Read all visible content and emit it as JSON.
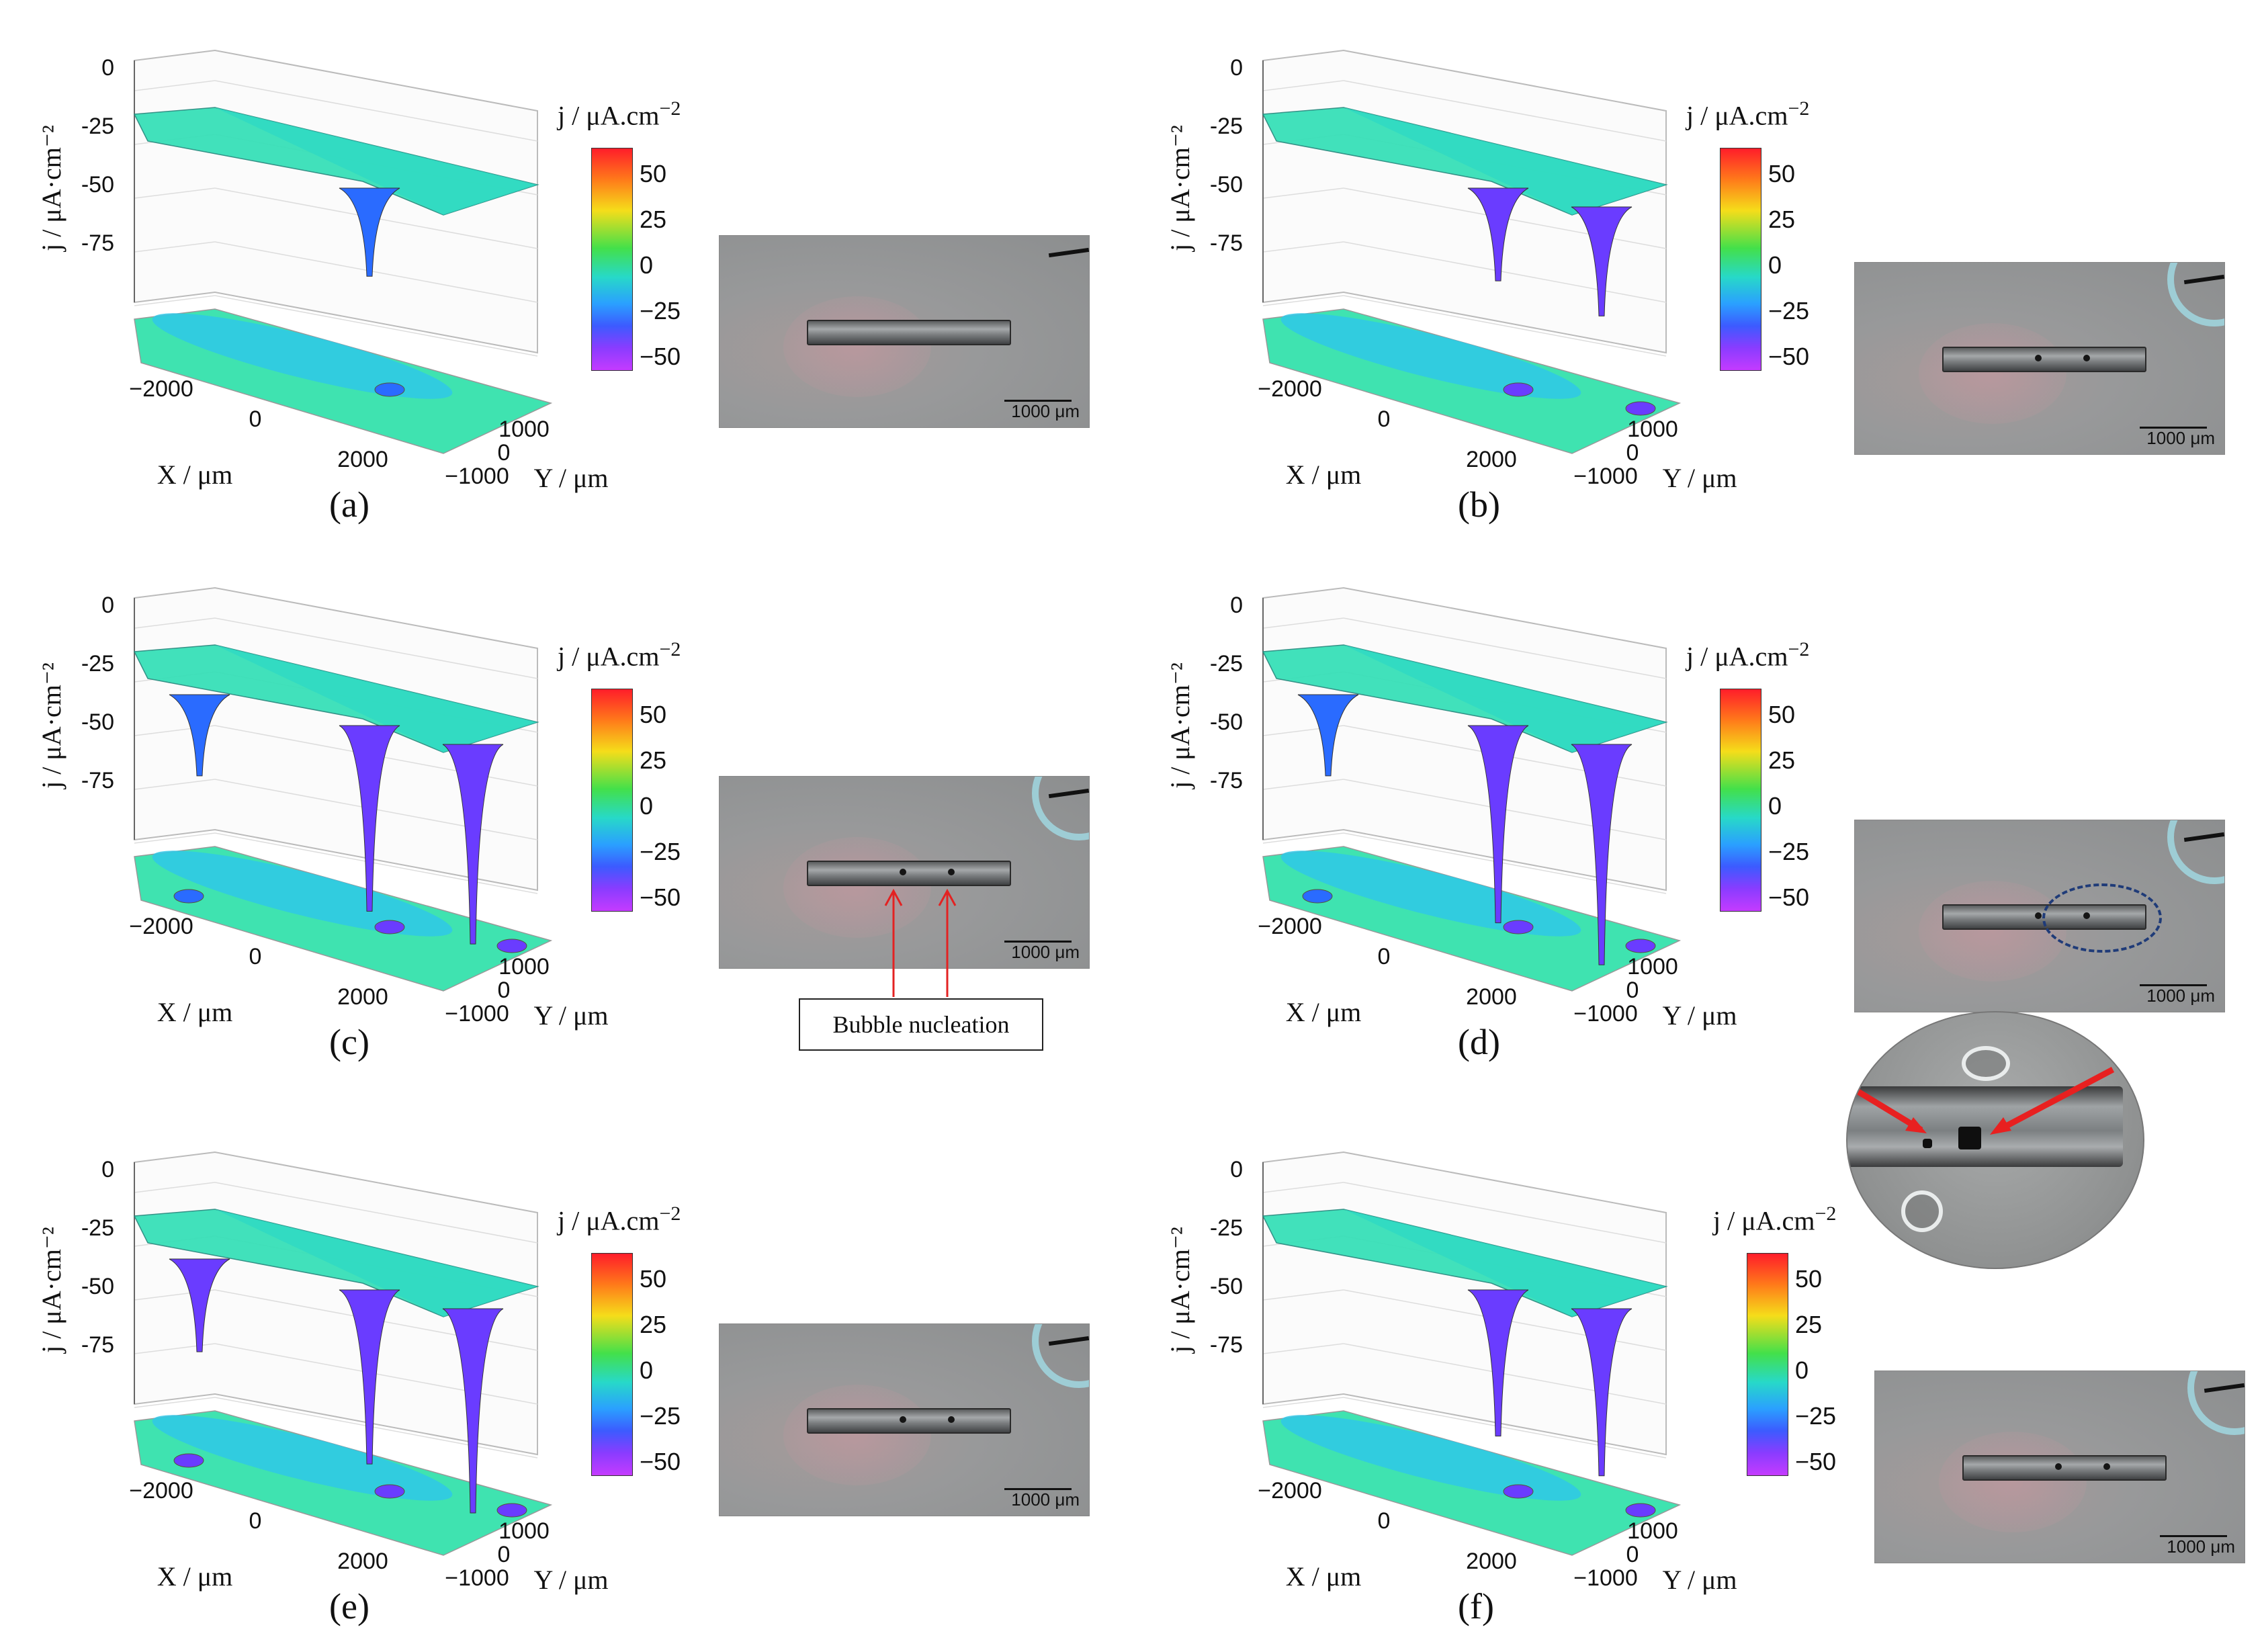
{
  "colorbar": {
    "title": "j / μA.cm",
    "title_exp": "−2",
    "ticks": [
      "50",
      "25",
      "0",
      "−25",
      "−50"
    ]
  },
  "axes": {
    "z_label": "j / μA·cm⁻²",
    "z_ticks": [
      "0",
      "-25",
      "-50",
      "-75"
    ],
    "x_label": "X / μm",
    "x_ticks": [
      "−2000",
      "0",
      "2000"
    ],
    "y_label": "Y / μm",
    "y_ticks": [
      "1000",
      "0",
      "−1000"
    ]
  },
  "scale_bar_text": "1000 μm",
  "annotation": "Bubble nucleation",
  "panels": [
    {
      "label": "(a)",
      "pits": []
    },
    {
      "label": "(b)",
      "pits": []
    },
    {
      "label": "(c)",
      "pits": []
    },
    {
      "label": "(d)",
      "pits": []
    },
    {
      "label": "(e)",
      "pits": []
    },
    {
      "label": "(f)",
      "pits": []
    }
  ],
  "chart_data": [
    {
      "type": "surface",
      "panel": "(a)",
      "zlabel": "j / μA·cm⁻²",
      "xlabel": "X / μm",
      "ylabel": "Y / μm",
      "zlim": [
        -90,
        20
      ],
      "xlim": [
        -2500,
        2500
      ],
      "ylim": [
        -1000,
        1000
      ],
      "colorbar_range": [
        -55,
        60
      ],
      "minima": [
        {
          "x": 500,
          "y": 0,
          "j": -38
        }
      ]
    },
    {
      "type": "surface",
      "panel": "(b)",
      "zlabel": "j / μA·cm⁻²",
      "xlabel": "X / μm",
      "ylabel": "Y / μm",
      "zlim": [
        -90,
        20
      ],
      "xlim": [
        -2500,
        2500
      ],
      "ylim": [
        -1000,
        1000
      ],
      "colorbar_range": [
        -55,
        60
      ],
      "minima": [
        {
          "x": 500,
          "y": 0,
          "j": -40
        },
        {
          "x": 1900,
          "y": 0,
          "j": -47
        }
      ]
    },
    {
      "type": "surface",
      "panel": "(c)",
      "zlabel": "j / μA·cm⁻²",
      "xlabel": "X / μm",
      "ylabel": "Y / μm",
      "zlim": [
        -90,
        20
      ],
      "xlim": [
        -2500,
        2500
      ],
      "ylim": [
        -1000,
        1000
      ],
      "colorbar_range": [
        -55,
        60
      ],
      "minima": [
        {
          "x": -1800,
          "y": 0,
          "j": -35
        },
        {
          "x": 500,
          "y": 0,
          "j": -80
        },
        {
          "x": 1900,
          "y": 0,
          "j": -86
        }
      ]
    },
    {
      "type": "surface",
      "panel": "(d)",
      "zlabel": "j / μA·cm⁻²",
      "xlabel": "X / μm",
      "ylabel": "Y / μm",
      "zlim": [
        -90,
        20
      ],
      "xlim": [
        -2500,
        2500
      ],
      "ylim": [
        -1000,
        1000
      ],
      "colorbar_range": [
        -55,
        60
      ],
      "minima": [
        {
          "x": -1800,
          "y": 0,
          "j": -35
        },
        {
          "x": 500,
          "y": 0,
          "j": -85
        },
        {
          "x": 1900,
          "y": 0,
          "j": -95
        }
      ]
    },
    {
      "type": "surface",
      "panel": "(e)",
      "zlabel": "j / μA·cm⁻²",
      "xlabel": "X / μm",
      "ylabel": "Y / μm",
      "zlim": [
        -90,
        20
      ],
      "xlim": [
        -2500,
        2500
      ],
      "ylim": [
        -1000,
        1000
      ],
      "colorbar_range": [
        -55,
        60
      ],
      "minima": [
        {
          "x": -1800,
          "y": 0,
          "j": -40
        },
        {
          "x": 500,
          "y": 0,
          "j": -75
        },
        {
          "x": 1900,
          "y": 0,
          "j": -88
        }
      ]
    },
    {
      "type": "surface",
      "panel": "(f)",
      "zlabel": "j / μA·cm⁻²",
      "xlabel": "X / μm",
      "ylabel": "Y / μm",
      "zlim": [
        -90,
        20
      ],
      "xlim": [
        -2500,
        2500
      ],
      "ylim": [
        -1000,
        1000
      ],
      "colorbar_range": [
        -55,
        60
      ],
      "minima": [
        {
          "x": 500,
          "y": 0,
          "j": -63
        },
        {
          "x": 1900,
          "y": 0,
          "j": -72
        }
      ]
    }
  ]
}
